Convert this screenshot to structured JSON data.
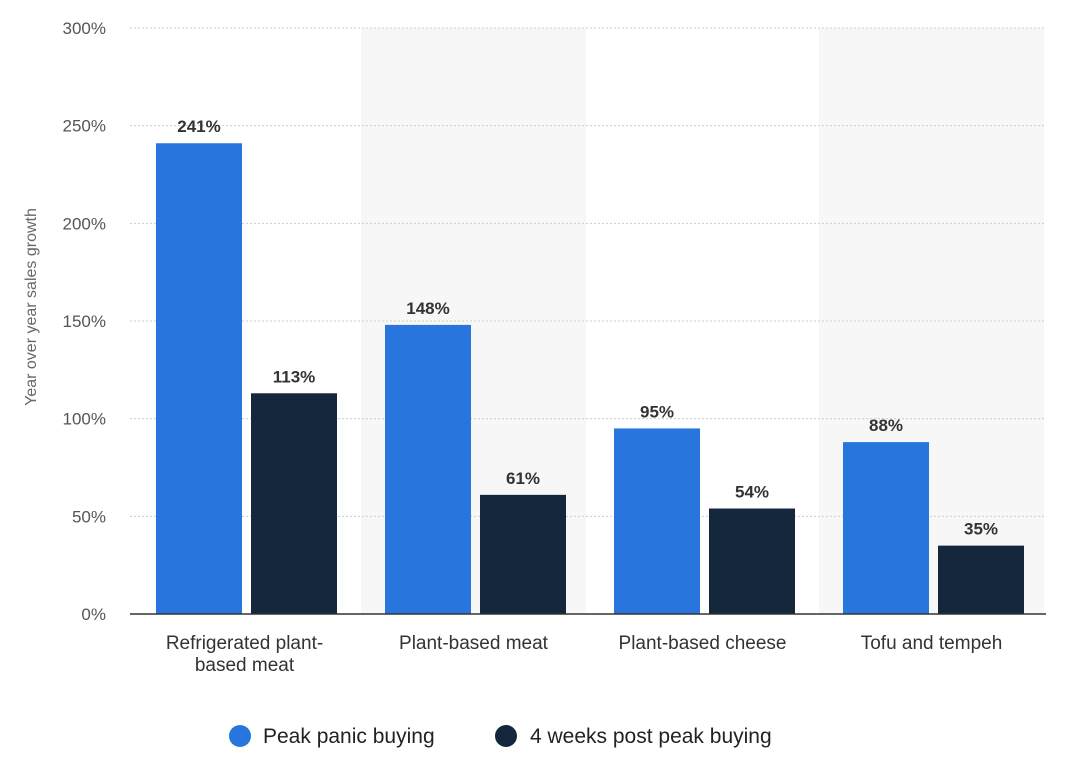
{
  "chart_data": {
    "type": "bar",
    "categories": [
      [
        "Refrigerated plant-",
        "based meat"
      ],
      [
        "Plant-based meat"
      ],
      [
        "Plant-based cheese"
      ],
      [
        "Tofu and tempeh"
      ]
    ],
    "series": [
      {
        "name": "Peak panic buying",
        "color": "#2876dd",
        "values": [
          241,
          148,
          95,
          88
        ],
        "labels": [
          "241%",
          "148%",
          "95%",
          "88%"
        ]
      },
      {
        "name": "4 weeks post peak buying",
        "color": "#14273d",
        "values": [
          113,
          61,
          54,
          35
        ],
        "labels": [
          "113%",
          "61%",
          "54%",
          "35%"
        ]
      }
    ],
    "ylabel": "Year over year sales growth",
    "ylim": [
      0,
      300
    ],
    "yticks": [
      0,
      50,
      100,
      150,
      200,
      250,
      300
    ],
    "ytick_labels": [
      "0%",
      "50%",
      "100%",
      "150%",
      "200%",
      "250%",
      "300%"
    ],
    "grid": true,
    "legend_position": "bottom"
  }
}
